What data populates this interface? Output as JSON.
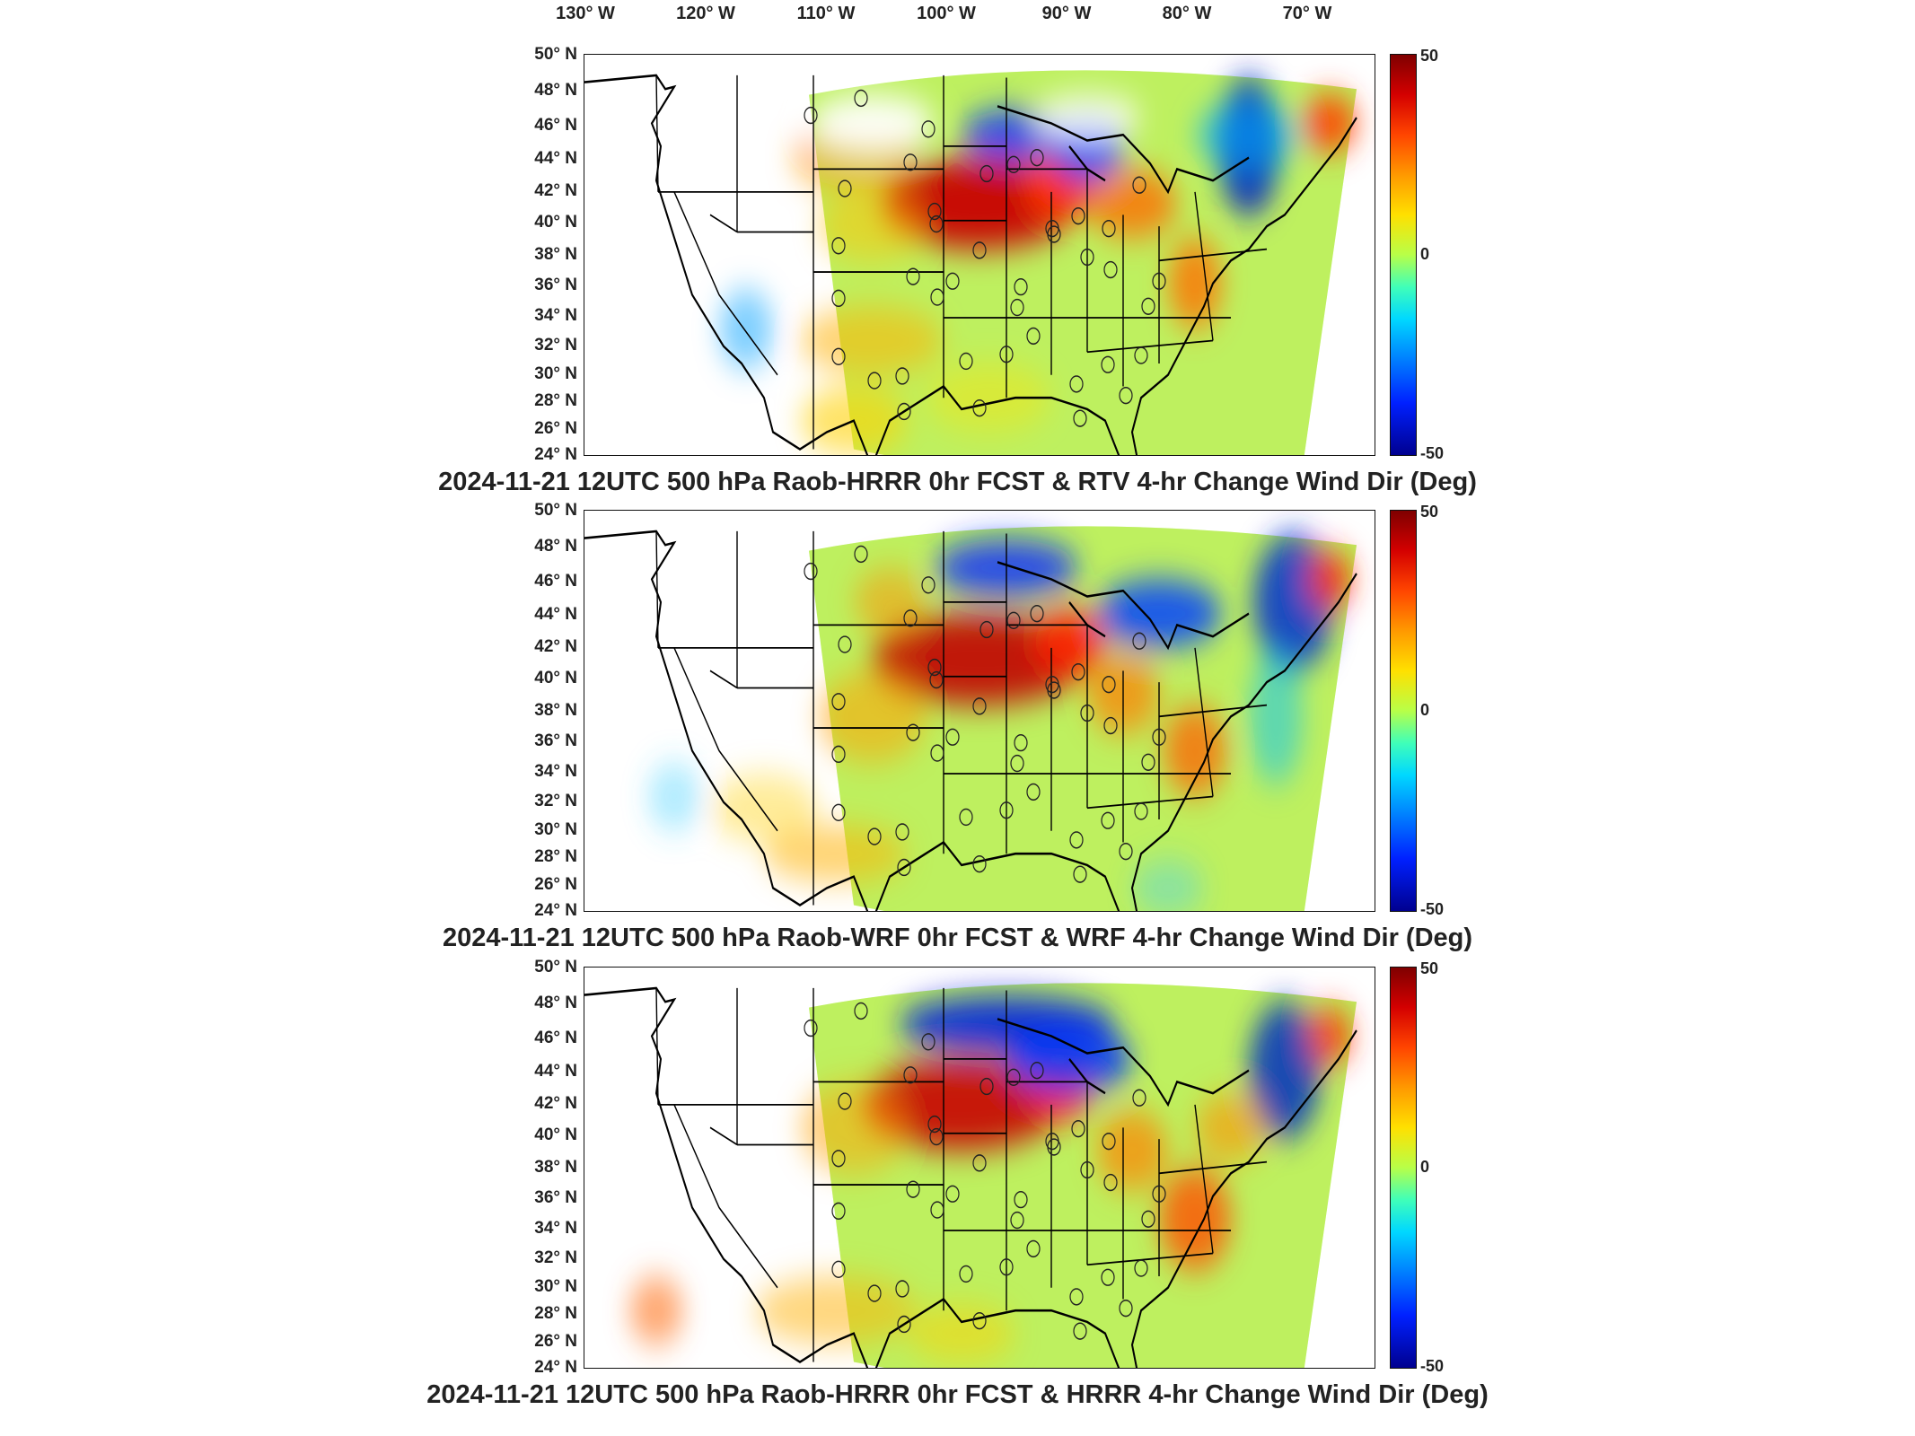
{
  "figure": {
    "lon_labels": [
      "130° W",
      "120° W",
      "110° W",
      "100° W",
      "90° W",
      "80° W",
      "70° W"
    ],
    "lat_labels": [
      "50° N",
      "48° N",
      "46° N",
      "44° N",
      "42° N",
      "40° N",
      "38° N",
      "36° N",
      "34° N",
      "32° N",
      "30° N",
      "28° N",
      "26° N",
      "24° N"
    ],
    "colorbar": {
      "min_label": "-50",
      "mid_label": "0",
      "max_label": "50",
      "colormap": "jet"
    },
    "panels": [
      {
        "title": "2024-11-21 12UTC 500 hPa Raob-HRRR 0hr FCST & RTV 4-hr Change Wind Dir (Deg)"
      },
      {
        "title": "2024-11-21 12UTC 500 hPa Raob-WRF 0hr FCST & WRF 4-hr Change Wind Dir (Deg)"
      },
      {
        "title": "2024-11-21 12UTC 500 hPa Raob-HRRR 0hr FCST & HRRR 4-hr Change Wind Dir (Deg)"
      }
    ]
  }
}
